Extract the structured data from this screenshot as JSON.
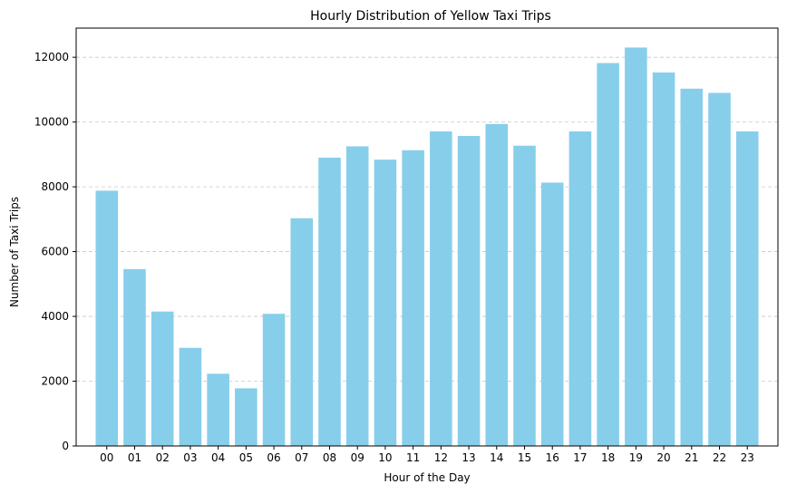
{
  "chart_data": {
    "type": "bar",
    "title": "Hourly Distribution of Yellow Taxi Trips",
    "xlabel": "Hour of the Day",
    "ylabel": "Number of Taxi Trips",
    "categories": [
      "00",
      "01",
      "02",
      "03",
      "04",
      "05",
      "06",
      "07",
      "08",
      "09",
      "10",
      "11",
      "12",
      "13",
      "14",
      "15",
      "16",
      "17",
      "18",
      "19",
      "20",
      "21",
      "22",
      "23"
    ],
    "values": [
      7880,
      5460,
      4150,
      3030,
      2230,
      1780,
      4080,
      7030,
      8900,
      9250,
      8840,
      9130,
      9710,
      9570,
      9940,
      9270,
      8130,
      9710,
      11820,
      12300,
      11530,
      11030,
      10900,
      9710
    ],
    "ylim": [
      0,
      12900
    ],
    "yticks": [
      0,
      2000,
      4000,
      6000,
      8000,
      10000,
      12000
    ],
    "grid": "y-dashed",
    "bar_color": "#87ceeb"
  }
}
